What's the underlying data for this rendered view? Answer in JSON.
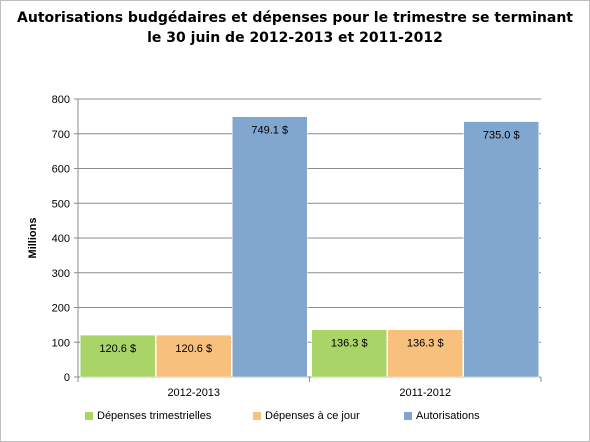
{
  "chart_data": {
    "type": "bar",
    "title_line1": "Autorisations budgédaires et dépenses pour le trimestre se terminant",
    "title_line2": "le 30 juin de 2012-2013  et 2011-2012",
    "ylabel": "Millions",
    "ylim": [
      0,
      800
    ],
    "yticks": [
      "0",
      "100",
      "200",
      "300",
      "400",
      "500",
      "600",
      "700",
      "800"
    ],
    "categories": [
      "2012-2013",
      "2011-2012"
    ],
    "series": [
      {
        "name": "Dépenses trimestrielles",
        "color": "#a9d468",
        "values": [
          120.6,
          136.3
        ],
        "labels": [
          "120.6 $",
          "136.3 $"
        ]
      },
      {
        "name": "Dépenses à ce jour",
        "color": "#f7c07d",
        "values": [
          120.6,
          136.3
        ],
        "labels": [
          "120.6 $",
          "136.3 $"
        ]
      },
      {
        "name": "Autorisations",
        "color": "#82a7ce",
        "values": [
          749.1,
          735.0
        ],
        "labels": [
          "749.1 $",
          "735.0 $"
        ]
      }
    ],
    "grid": true,
    "legend_position": "bottom"
  }
}
